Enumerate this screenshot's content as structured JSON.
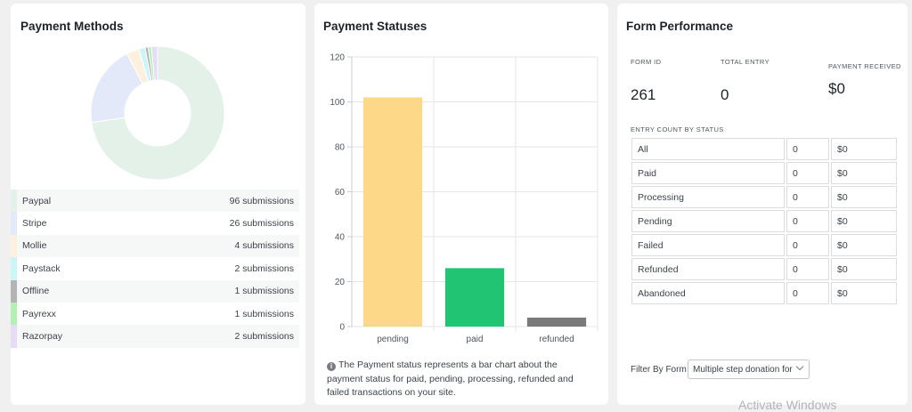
{
  "payment_methods": {
    "title": "Payment Methods",
    "items": [
      {
        "name": "Paypal",
        "count": "96 submissions",
        "value": 96,
        "color": "#e3f1e8"
      },
      {
        "name": "Stripe",
        "count": "26 submissions",
        "value": 26,
        "color": "#e3e9f8"
      },
      {
        "name": "Mollie",
        "count": "4 submissions",
        "value": 4,
        "color": "#fdf0df"
      },
      {
        "name": "Paystack",
        "count": "2 submissions",
        "value": 2,
        "color": "#ccf5f7"
      },
      {
        "name": "Offline",
        "count": "1 submissions",
        "value": 1,
        "color": "#b4b4b4"
      },
      {
        "name": "Payrexx",
        "count": "1 submissions",
        "value": 1,
        "color": "#b4f0b4"
      },
      {
        "name": "Razorpay",
        "count": "2 submissions",
        "value": 2,
        "color": "#e6dcf5"
      }
    ]
  },
  "payment_statuses": {
    "title": "Payment Statuses",
    "note": "The Payment status represents a bar chart about the payment status for paid, pending, processing, refunded and failed transactions on your site.",
    "info_icon": "info-icon"
  },
  "chart_data": {
    "type": "bar",
    "categories": [
      "pending",
      "paid",
      "refunded"
    ],
    "values": [
      102,
      26,
      4
    ],
    "colors": [
      "#fdd888",
      "#20c473",
      "#7a7a7a"
    ],
    "ylim": [
      0,
      120
    ],
    "yticks": [
      0,
      20,
      40,
      60,
      80,
      100,
      120
    ],
    "grid": true,
    "title": "",
    "xlabel": "",
    "ylabel": ""
  },
  "form_performance": {
    "title": "Form Performance",
    "form_id_label": "FORM ID",
    "form_id": "261",
    "total_entry_label": "TOTAL ENTRY",
    "total_entry": "0",
    "payment_received_label": "PAYMENT RECEIVED",
    "payment_received": "$0",
    "entry_count_label": "ENTRY COUNT BY STATUS",
    "rows": [
      {
        "status": "All",
        "count": "0",
        "amount": "$0"
      },
      {
        "status": "Paid",
        "count": "0",
        "amount": "$0"
      },
      {
        "status": "Processing",
        "count": "0",
        "amount": "$0"
      },
      {
        "status": "Pending",
        "count": "0",
        "amount": "$0"
      },
      {
        "status": "Failed",
        "count": "0",
        "amount": "$0"
      },
      {
        "status": "Refunded",
        "count": "0",
        "amount": "$0"
      },
      {
        "status": "Abandoned",
        "count": "0",
        "amount": "$0"
      }
    ],
    "filter_label": "Filter By Form",
    "filter_value": "Multiple step donation for"
  },
  "watermark": "Activate Windows"
}
